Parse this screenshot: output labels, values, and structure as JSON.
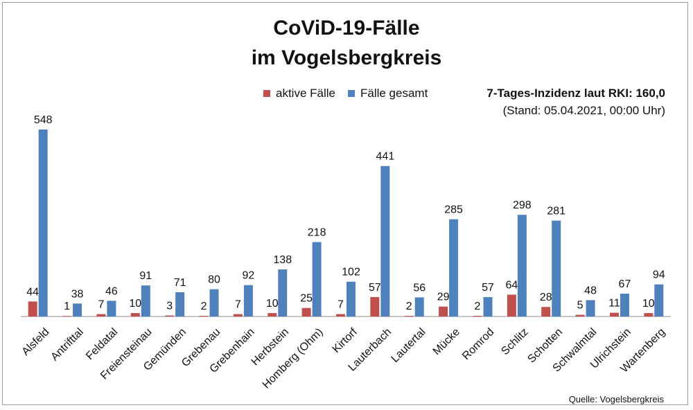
{
  "chart_data": {
    "type": "bar",
    "title_line1": "CoViD-19-Fälle",
    "title_line2": "im Vogelsbergkreis",
    "incidence_title": "7-Tages-Inzidenz laut RKI: 160,0",
    "incidence_date": "(Stand: 05.04.2021, 00:00 Uhr)",
    "source": "Quelle: Vogelsbergkreis",
    "categories": [
      "Alsfeld",
      "Antrifttal",
      "Feldatal",
      "Freiensteinau",
      "Gemünden",
      "Grebenau",
      "Grebenhain",
      "Herbstein",
      "Homberg (Ohm)",
      "Kirtorf",
      "Lauterbach",
      "Lautertal",
      "Mücke",
      "Romrod",
      "Schlitz",
      "Schotten",
      "Schwalmtal",
      "Ulrichstein",
      "Wartenberg"
    ],
    "series": [
      {
        "name": "aktive Fälle",
        "color": "#c0504d",
        "values": [
          44,
          1,
          7,
          10,
          3,
          2,
          7,
          10,
          25,
          7,
          57,
          2,
          29,
          2,
          64,
          28,
          5,
          11,
          10
        ]
      },
      {
        "name": "Fälle gesamt",
        "color": "#4f81bd",
        "values": [
          548,
          38,
          46,
          91,
          71,
          80,
          92,
          138,
          218,
          102,
          441,
          56,
          285,
          57,
          298,
          281,
          48,
          67,
          94
        ]
      }
    ],
    "ylim": [
      0,
      600
    ],
    "grid": false,
    "legend_position": "top-center"
  }
}
